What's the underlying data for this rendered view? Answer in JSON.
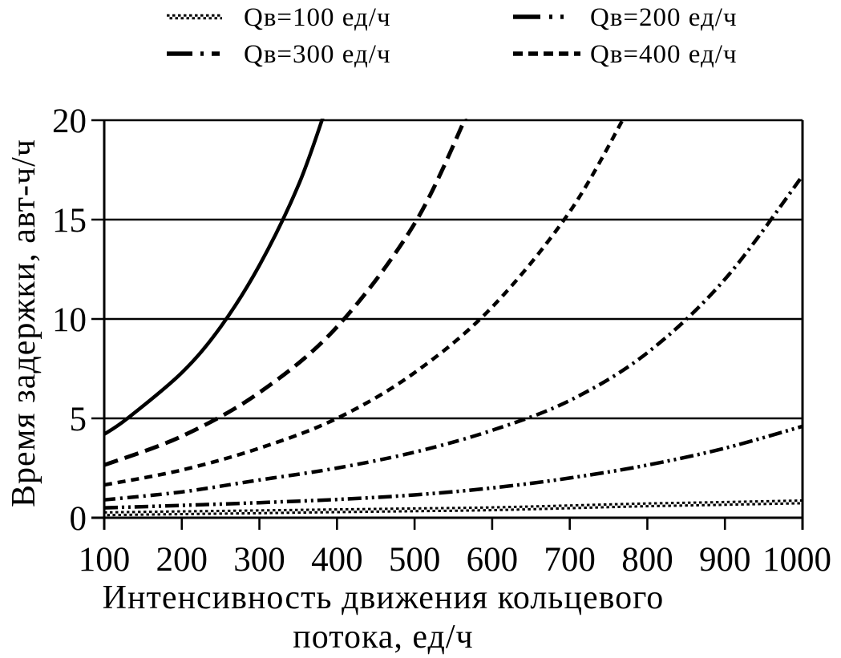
{
  "figure": {
    "background": "#ffffff",
    "ink": "#000000"
  },
  "legend": {
    "position": "top",
    "items": [
      {
        "label": "Qв=100 ед/ч",
        "series": "qv100"
      },
      {
        "label": "Qв=200 ед/ч",
        "series": "qv200"
      },
      {
        "label": "Qв=300 ед/ч",
        "series": "qv300"
      },
      {
        "label": "Qв=400 ед/ч",
        "series": "qv400"
      }
    ]
  },
  "chart_data": {
    "type": "line",
    "title": "",
    "xlabel_line1": "Интенсивность движения кольцевого",
    "xlabel_line2": "потока, ед/ч",
    "ylabel": "Время задержки, авт-ч/ч",
    "xlim": [
      100,
      1000
    ],
    "ylim": [
      0,
      20
    ],
    "x_ticks": [
      100,
      200,
      300,
      400,
      500,
      600,
      700,
      800,
      900,
      1000
    ],
    "y_ticks": [
      0,
      5,
      10,
      15,
      20
    ],
    "grid": "horizontal",
    "legend_position": "top",
    "series": [
      {
        "key": "unlabeled_solid",
        "legend_label": null,
        "line_style": "solid",
        "points": [
          [
            100,
            4.2
          ],
          [
            130,
            5.0
          ],
          [
            200,
            7.3
          ],
          [
            250,
            9.6
          ],
          [
            300,
            12.7
          ],
          [
            350,
            16.7
          ],
          [
            385,
            20.5
          ]
        ]
      },
      {
        "key": "unlabeled_longdash",
        "legend_label": null,
        "line_style": "long-dash",
        "points": [
          [
            100,
            2.65
          ],
          [
            200,
            4.1
          ],
          [
            300,
            6.3
          ],
          [
            400,
            9.6
          ],
          [
            500,
            14.8
          ],
          [
            570,
            20.5
          ]
        ]
      },
      {
        "key": "qv400",
        "legend_label": "Qв=400 ед/ч",
        "line_style": "dash",
        "points": [
          [
            100,
            1.65
          ],
          [
            200,
            2.4
          ],
          [
            300,
            3.5
          ],
          [
            400,
            5.0
          ],
          [
            500,
            7.3
          ],
          [
            600,
            10.6
          ],
          [
            700,
            15.4
          ],
          [
            775,
            20.5
          ]
        ]
      },
      {
        "key": "qv300",
        "legend_label": "Qв=300 ед/ч",
        "line_style": "dash-dot",
        "points": [
          [
            100,
            0.9
          ],
          [
            200,
            1.3
          ],
          [
            300,
            1.9
          ],
          [
            400,
            2.5
          ],
          [
            500,
            3.3
          ],
          [
            600,
            4.4
          ],
          [
            700,
            5.9
          ],
          [
            800,
            8.3
          ],
          [
            900,
            12.0
          ],
          [
            1000,
            17.2
          ]
        ]
      },
      {
        "key": "qv200",
        "legend_label": "Qв=200 ед/ч",
        "line_style": "dash-dot-dot",
        "points": [
          [
            100,
            0.5
          ],
          [
            200,
            0.62
          ],
          [
            300,
            0.76
          ],
          [
            400,
            0.92
          ],
          [
            500,
            1.15
          ],
          [
            600,
            1.5
          ],
          [
            700,
            2.0
          ],
          [
            800,
            2.65
          ],
          [
            900,
            3.5
          ],
          [
            1000,
            4.6
          ]
        ]
      },
      {
        "key": "qv100",
        "legend_label": "Qв=100 ед/ч",
        "line_style": "checker",
        "points": [
          [
            100,
            0.2
          ],
          [
            200,
            0.25
          ],
          [
            300,
            0.3
          ],
          [
            400,
            0.35
          ],
          [
            500,
            0.4
          ],
          [
            600,
            0.45
          ],
          [
            700,
            0.55
          ],
          [
            800,
            0.65
          ],
          [
            900,
            0.72
          ],
          [
            1000,
            0.8
          ]
        ]
      }
    ]
  }
}
